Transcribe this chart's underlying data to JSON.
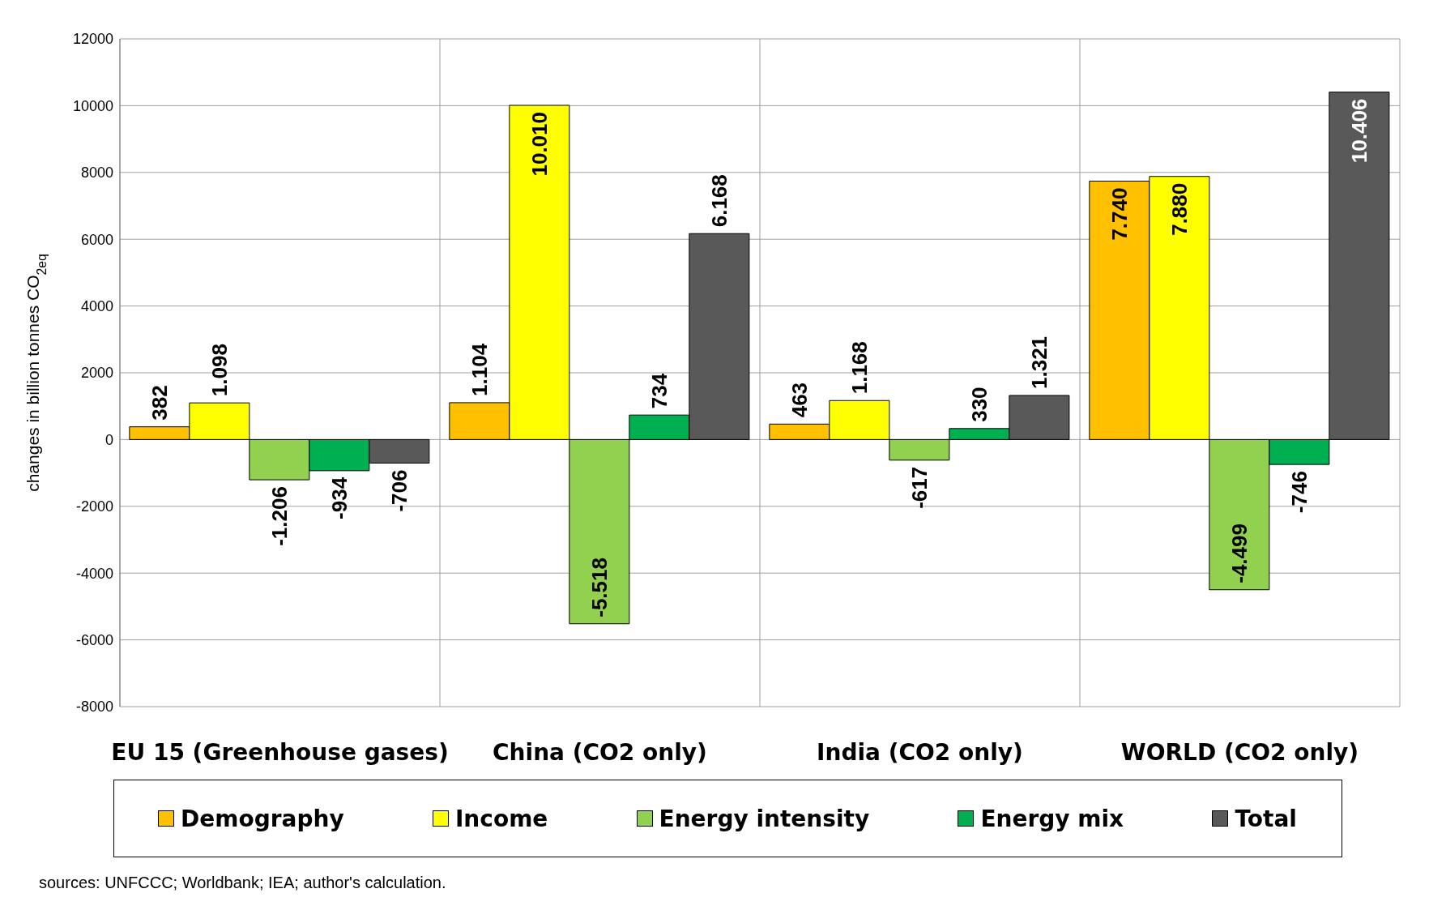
{
  "chart_data": {
    "type": "bar",
    "ylabel": "changes in billion tonnes  CO$_{2eq}$",
    "categories": [
      "EU 15 (Greenhouse gases)",
      "China (CO2 only)",
      "India (CO2  only)",
      "WORLD (CO2 only)"
    ],
    "series": [
      {
        "name": "Demography",
        "color": "#ffc000",
        "values": [
          382,
          1104,
          463,
          7740
        ],
        "value_labels": [
          "382",
          "1.104",
          "463",
          "7.740"
        ]
      },
      {
        "name": "Income",
        "color": "#ffff00",
        "values": [
          1098,
          10010,
          1168,
          7880
        ],
        "value_labels": [
          "1.098",
          "10.010",
          "1.168",
          "7.880"
        ]
      },
      {
        "name": "Energy intensity",
        "color": "#92d050",
        "values": [
          -1206,
          -5518,
          -617,
          -4499
        ],
        "value_labels": [
          "-1.206",
          "-5.518",
          "-617",
          "-4.499"
        ]
      },
      {
        "name": "Energy mix",
        "color": "#00b050",
        "values": [
          -934,
          734,
          330,
          -746
        ],
        "value_labels": [
          "-934",
          "734",
          "330",
          "-746"
        ]
      },
      {
        "name": "Total",
        "color": "#595959",
        "values": [
          -706,
          6168,
          1321,
          10406
        ],
        "value_labels": [
          "-706",
          "6.168",
          "1.321",
          "10.406"
        ]
      }
    ],
    "ylim": [
      -8000,
      12000
    ],
    "yticks": [
      -8000,
      -6000,
      -4000,
      -2000,
      0,
      2000,
      4000,
      6000,
      8000,
      10000,
      12000
    ],
    "grid": true,
    "legend": "bottom",
    "annotations": [
      "sources: UNFCCC; Worldbank; IEA; author's calculation."
    ]
  }
}
